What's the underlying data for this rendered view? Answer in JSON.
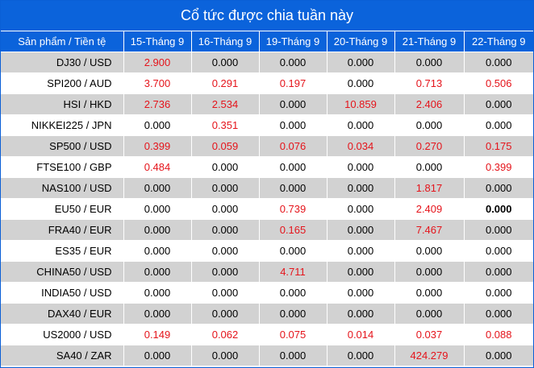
{
  "title": "Cổ tức được chia tuần này",
  "columns": [
    "Sản phẩm / Tiền tệ",
    "15-Tháng 9",
    "16-Tháng 9",
    "19-Tháng 9",
    "20-Tháng 9",
    "21-Tháng 9",
    "22-Tháng 9"
  ],
  "colors": {
    "header_bg": "#0b63db",
    "header_text": "#ffffff",
    "row_alt_bg": "#d2d2d2",
    "positive_value": "#e5141b"
  },
  "rows": [
    {
      "product": "DJ30 / USD",
      "values": [
        "2.900",
        "0.000",
        "0.000",
        "0.000",
        "0.000",
        "0.000"
      ]
    },
    {
      "product": "SPI200 / AUD",
      "values": [
        "3.700",
        "0.291",
        "0.197",
        "0.000",
        "0.713",
        "0.506"
      ]
    },
    {
      "product": "HSI / HKD",
      "values": [
        "2.736",
        "2.534",
        "0.000",
        "10.859",
        "2.406",
        "0.000"
      ]
    },
    {
      "product": "NIKKEI225 / JPN",
      "values": [
        "0.000",
        "0.351",
        "0.000",
        "0.000",
        "0.000",
        "0.000"
      ]
    },
    {
      "product": "SP500 / USD",
      "values": [
        "0.399",
        "0.059",
        "0.076",
        "0.034",
        "0.270",
        "0.175"
      ]
    },
    {
      "product": "FTSE100 / GBP",
      "values": [
        "0.484",
        "0.000",
        "0.000",
        "0.000",
        "0.000",
        "0.399"
      ]
    },
    {
      "product": "NAS100 / USD",
      "values": [
        "0.000",
        "0.000",
        "0.000",
        "0.000",
        "1.817",
        "0.000"
      ]
    },
    {
      "product": "EU50 / EUR",
      "values": [
        "0.000",
        "0.000",
        "0.739",
        "0.000",
        "2.409",
        "0.000"
      ]
    },
    {
      "product": "FRA40 / EUR",
      "values": [
        "0.000",
        "0.000",
        "0.165",
        "0.000",
        "7.467",
        "0.000"
      ]
    },
    {
      "product": "ES35 / EUR",
      "values": [
        "0.000",
        "0.000",
        "0.000",
        "0.000",
        "0.000",
        "0.000"
      ]
    },
    {
      "product": "CHINA50 / USD",
      "values": [
        "0.000",
        "0.000",
        "4.711",
        "0.000",
        "0.000",
        "0.000"
      ]
    },
    {
      "product": "INDIA50 / USD",
      "values": [
        "0.000",
        "0.000",
        "0.000",
        "0.000",
        "0.000",
        "0.000"
      ]
    },
    {
      "product": "DAX40 / EUR",
      "values": [
        "0.000",
        "0.000",
        "0.000",
        "0.000",
        "0.000",
        "0.000"
      ]
    },
    {
      "product": "US2000 / USD",
      "values": [
        "0.149",
        "0.062",
        "0.075",
        "0.014",
        "0.037",
        "0.088"
      ]
    },
    {
      "product": "SA40 / ZAR",
      "values": [
        "0.000",
        "0.000",
        "0.000",
        "0.000",
        "424.279",
        "0.000"
      ]
    }
  ]
}
